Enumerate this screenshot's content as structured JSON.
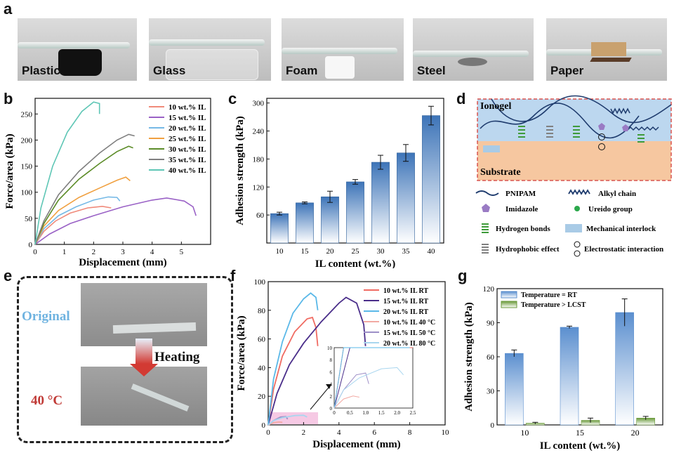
{
  "panel_labels": {
    "a": "a",
    "b": "b",
    "c": "c",
    "d": "d",
    "e": "e",
    "f": "f",
    "g": "g"
  },
  "panel_a": {
    "captions": [
      "Plastic",
      "Glass",
      "Foam",
      "Steel",
      "Paper"
    ]
  },
  "chart_data": [
    {
      "panel": "b",
      "type": "line",
      "xlabel": "Displacement (mm)",
      "ylabel": "Force/area (kPa)",
      "xlim": [
        0,
        6
      ],
      "ylim": [
        0,
        280
      ],
      "xticks": [
        0,
        1,
        2,
        3,
        4,
        5
      ],
      "yticks": [
        0,
        50,
        100,
        150,
        200,
        250
      ],
      "legend_position": "top-right",
      "series": [
        {
          "name": "10 wt.% IL",
          "color": "#f08a7a",
          "points": [
            [
              0,
              0
            ],
            [
              0.3,
              25
            ],
            [
              0.7,
              45
            ],
            [
              1.2,
              60
            ],
            [
              1.8,
              70
            ],
            [
              2.3,
              73
            ],
            [
              2.6,
              70
            ]
          ]
        },
        {
          "name": "15 wt.% IL",
          "color": "#9a62c6",
          "points": [
            [
              0,
              0
            ],
            [
              0.5,
              20
            ],
            [
              1.2,
              40
            ],
            [
              2,
              55
            ],
            [
              3,
              72
            ],
            [
              4,
              85
            ],
            [
              4.5,
              89
            ],
            [
              5.1,
              83
            ],
            [
              5.4,
              72
            ],
            [
              5.5,
              55
            ]
          ]
        },
        {
          "name": "20 wt.% IL",
          "color": "#75b9e6",
          "points": [
            [
              0,
              0
            ],
            [
              0.3,
              30
            ],
            [
              0.8,
              55
            ],
            [
              1.4,
              72
            ],
            [
              2,
              85
            ],
            [
              2.5,
              91
            ],
            [
              2.8,
              90
            ],
            [
              2.9,
              83
            ]
          ]
        },
        {
          "name": "25 wt.% IL",
          "color": "#f0a040",
          "points": [
            [
              0,
              0
            ],
            [
              0.3,
              35
            ],
            [
              0.8,
              65
            ],
            [
              1.5,
              90
            ],
            [
              2.2,
              108
            ],
            [
              2.8,
              123
            ],
            [
              3.1,
              129
            ],
            [
              3.25,
              122
            ]
          ]
        },
        {
          "name": "30 wt.% IL",
          "color": "#5c8c28",
          "points": [
            [
              0,
              0
            ],
            [
              0.3,
              40
            ],
            [
              0.8,
              85
            ],
            [
              1.5,
              125
            ],
            [
              2.2,
              155
            ],
            [
              2.8,
              178
            ],
            [
              3.2,
              188
            ],
            [
              3.35,
              185
            ]
          ]
        },
        {
          "name": "35 wt.% IL",
          "color": "#7f7f7f",
          "points": [
            [
              0,
              0
            ],
            [
              0.3,
              45
            ],
            [
              0.8,
              95
            ],
            [
              1.5,
              140
            ],
            [
              2.2,
              175
            ],
            [
              2.8,
              200
            ],
            [
              3.2,
              211
            ],
            [
              3.4,
              208
            ]
          ]
        },
        {
          "name": "40 wt.% IL",
          "color": "#5ec6b5",
          "points": [
            [
              0,
              0
            ],
            [
              0.2,
              70
            ],
            [
              0.6,
              150
            ],
            [
              1.1,
              215
            ],
            [
              1.6,
              255
            ],
            [
              2,
              273
            ],
            [
              2.2,
              270
            ],
            [
              2.2,
              250
            ]
          ]
        }
      ]
    },
    {
      "panel": "c",
      "type": "bar",
      "xlabel": "IL content (wt.%)",
      "ylabel": "Adhesion strength (kPa)",
      "categories": [
        "10",
        "15",
        "20",
        "25",
        "30",
        "35",
        "40"
      ],
      "values": [
        63,
        86,
        99,
        131,
        173,
        193,
        273
      ],
      "errors": [
        3,
        2,
        12,
        5,
        15,
        18,
        20
      ],
      "ylim": [
        0,
        310
      ],
      "yticks": [
        60,
        120,
        180,
        240,
        300
      ]
    },
    {
      "panel": "f",
      "type": "line",
      "xlabel": "Displacement (mm)",
      "ylabel": "Force/area (kPa)",
      "xlim": [
        0,
        10
      ],
      "ylim": [
        0,
        100
      ],
      "xticks": [
        0,
        2,
        4,
        6,
        8,
        10
      ],
      "yticks": [
        0,
        20,
        40,
        60,
        80,
        100
      ],
      "legend_position": "top-right",
      "series": [
        {
          "name": "10 wt.% IL RT",
          "color": "#f06b62",
          "points": [
            [
              0,
              0
            ],
            [
              0.3,
              25
            ],
            [
              0.8,
              48
            ],
            [
              1.5,
              65
            ],
            [
              2.2,
              74
            ],
            [
              2.5,
              75
            ],
            [
              2.7,
              68
            ],
            [
              2.8,
              55
            ]
          ]
        },
        {
          "name": "15 wt.% IL RT",
          "color": "#4a2e8a",
          "points": [
            [
              0,
              0
            ],
            [
              0.5,
              22
            ],
            [
              1.2,
              42
            ],
            [
              2,
              57
            ],
            [
              3,
              72
            ],
            [
              4,
              85
            ],
            [
              4.4,
              89
            ],
            [
              5,
              85
            ],
            [
              5.4,
              70
            ],
            [
              5.5,
              55
            ]
          ]
        },
        {
          "name": "20 wt.% IL RT",
          "color": "#5ab8e8",
          "points": [
            [
              0,
              0
            ],
            [
              0.3,
              32
            ],
            [
              0.8,
              58
            ],
            [
              1.4,
              78
            ],
            [
              2,
              88
            ],
            [
              2.4,
              92
            ],
            [
              2.7,
              89
            ],
            [
              2.8,
              80
            ]
          ]
        },
        {
          "name": "10 wt.% IL 40 °C",
          "color": "#f2a9a3",
          "points": [
            [
              0,
              0
            ],
            [
              0.3,
              1.5
            ],
            [
              0.6,
              2
            ],
            [
              0.8,
              1.8
            ]
          ]
        },
        {
          "name": "15 wt.% IL 50 °C",
          "color": "#9d8fc7",
          "points": [
            [
              0,
              0
            ],
            [
              0.3,
              3
            ],
            [
              0.7,
              5.5
            ],
            [
              1,
              5.8
            ],
            [
              1.1,
              4
            ]
          ]
        },
        {
          "name": "20 wt.% IL 80 °C",
          "color": "#a9d6ef",
          "points": [
            [
              0,
              0
            ],
            [
              0.3,
              3
            ],
            [
              0.8,
              5
            ],
            [
              1.5,
              6.5
            ],
            [
              2,
              6.7
            ],
            [
              2.2,
              5.5
            ]
          ]
        }
      ],
      "inset": {
        "xlim": [
          0,
          2.5
        ],
        "ylim": [
          0,
          10
        ],
        "xticks": [
          0,
          0.5,
          1,
          1.5,
          2,
          2.5
        ],
        "yticks": [
          0,
          2,
          4,
          6,
          8,
          10
        ],
        "xtick_labels": [
          "0",
          "0.5",
          "1.0",
          "1.5",
          "2.0",
          "2.5"
        ],
        "ytick_labels": [
          "0",
          "2",
          "4",
          "6",
          "8",
          "10"
        ]
      }
    },
    {
      "panel": "g",
      "type": "bar",
      "xlabel": "IL content (wt.%)",
      "ylabel": "Adhesion strength (kPa)",
      "categories": [
        "10",
        "15",
        "20"
      ],
      "ylim": [
        0,
        120
      ],
      "yticks": [
        0,
        30,
        60,
        90,
        120
      ],
      "legend_position": "top-left",
      "series": [
        {
          "name": "Temperature = RT",
          "color": "#5b8fcf",
          "values": [
            63,
            86,
            99
          ],
          "errors": [
            3,
            1,
            12
          ]
        },
        {
          "name": "Temperature > LCST",
          "color": "#6a9a3a",
          "values": [
            1.5,
            4,
            6
          ],
          "errors": [
            0.8,
            2,
            1.5
          ]
        }
      ]
    }
  ],
  "panel_d": {
    "ionogel_label": "Ionogel",
    "substrate_label": "Substrate",
    "legend": [
      {
        "icon": "wavy-line-icon",
        "label": "PNIPAM"
      },
      {
        "icon": "alkyl-chain-icon",
        "label": "Alkyl chain"
      },
      {
        "icon": "pentagon-icon",
        "label": "Imidazole"
      },
      {
        "icon": "green-dot-icon",
        "label": "Ureido group"
      },
      {
        "icon": "green-bars-icon",
        "label": "Hydrogen bonds"
      },
      {
        "icon": "blue-rect-icon",
        "label": "Mechanical interlock"
      },
      {
        "icon": "gray-bars-icon",
        "label": "Hydrophobic effect"
      },
      {
        "icon": "plus-minus-icon",
        "label": "Electrostatic interaction"
      }
    ],
    "colors": {
      "ionogel": "#bcd7ef",
      "substrate": "#f6c7a0",
      "border": "#d9534f"
    }
  },
  "panel_e": {
    "original_label": "Original",
    "heating_label": "Heating",
    "temp_label": "40 °C",
    "colors": {
      "original": "#6fb3e0",
      "temp": "#c03a36",
      "arrow": "#d23a33"
    }
  }
}
